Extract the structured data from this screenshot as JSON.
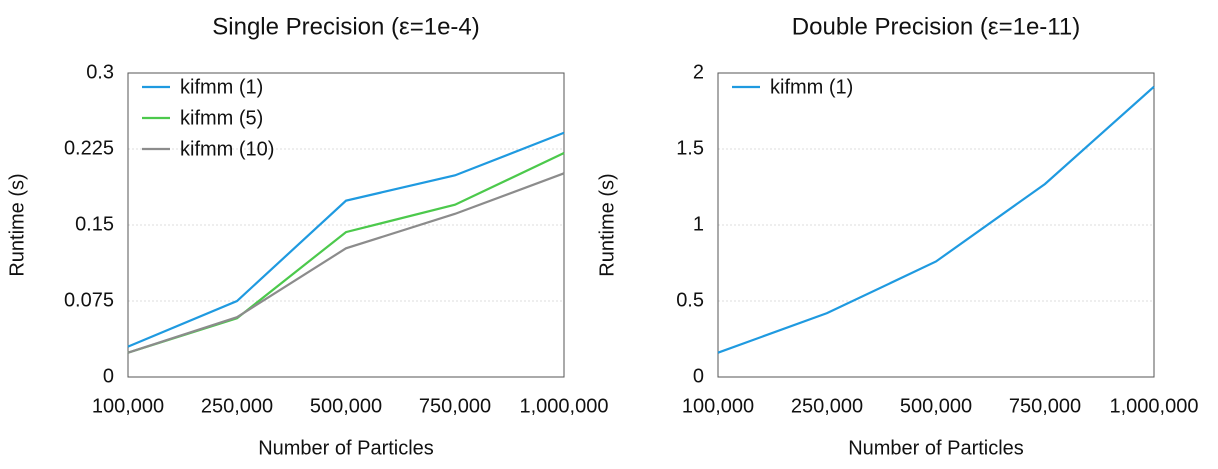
{
  "chart_data": [
    {
      "type": "line",
      "title": "Single Precision (ε=1e-4)",
      "x_label": "Number of Particles",
      "y_label": "Runtime (s)",
      "categories": [
        "100,000",
        "250,000",
        "500,000",
        "750,000",
        "1,000,000"
      ],
      "series": [
        {
          "name": "kifmm (1)",
          "color": "#1f9ae0",
          "values": [
            0.03,
            0.075,
            0.174,
            0.199,
            0.241
          ]
        },
        {
          "name": "kifmm (5)",
          "color": "#4cc94c",
          "values": [
            0.024,
            0.058,
            0.143,
            0.17,
            0.221
          ]
        },
        {
          "name": "kifmm (10)",
          "color": "#8c8c8c",
          "values": [
            0.024,
            0.059,
            0.127,
            0.161,
            0.201
          ]
        }
      ],
      "ylim": [
        0,
        0.3
      ],
      "yticks": [
        0,
        0.075,
        0.15,
        0.225,
        0.3
      ],
      "grid": true,
      "legend": "upper left"
    },
    {
      "type": "line",
      "title": "Double Precision (ε=1e-11)",
      "x_label": "Number of Particles",
      "y_label": "Runtime (s)",
      "categories": [
        "100,000",
        "250,000",
        "500,000",
        "750,000",
        "1,000,000"
      ],
      "series": [
        {
          "name": "kifmm (1)",
          "color": "#1f9ae0",
          "values": [
            0.16,
            0.42,
            0.76,
            1.27,
            1.91
          ]
        }
      ],
      "ylim": [
        0,
        2
      ],
      "yticks": [
        0,
        0.5,
        1,
        1.5,
        2
      ],
      "grid": true,
      "legend": "upper left"
    }
  ]
}
